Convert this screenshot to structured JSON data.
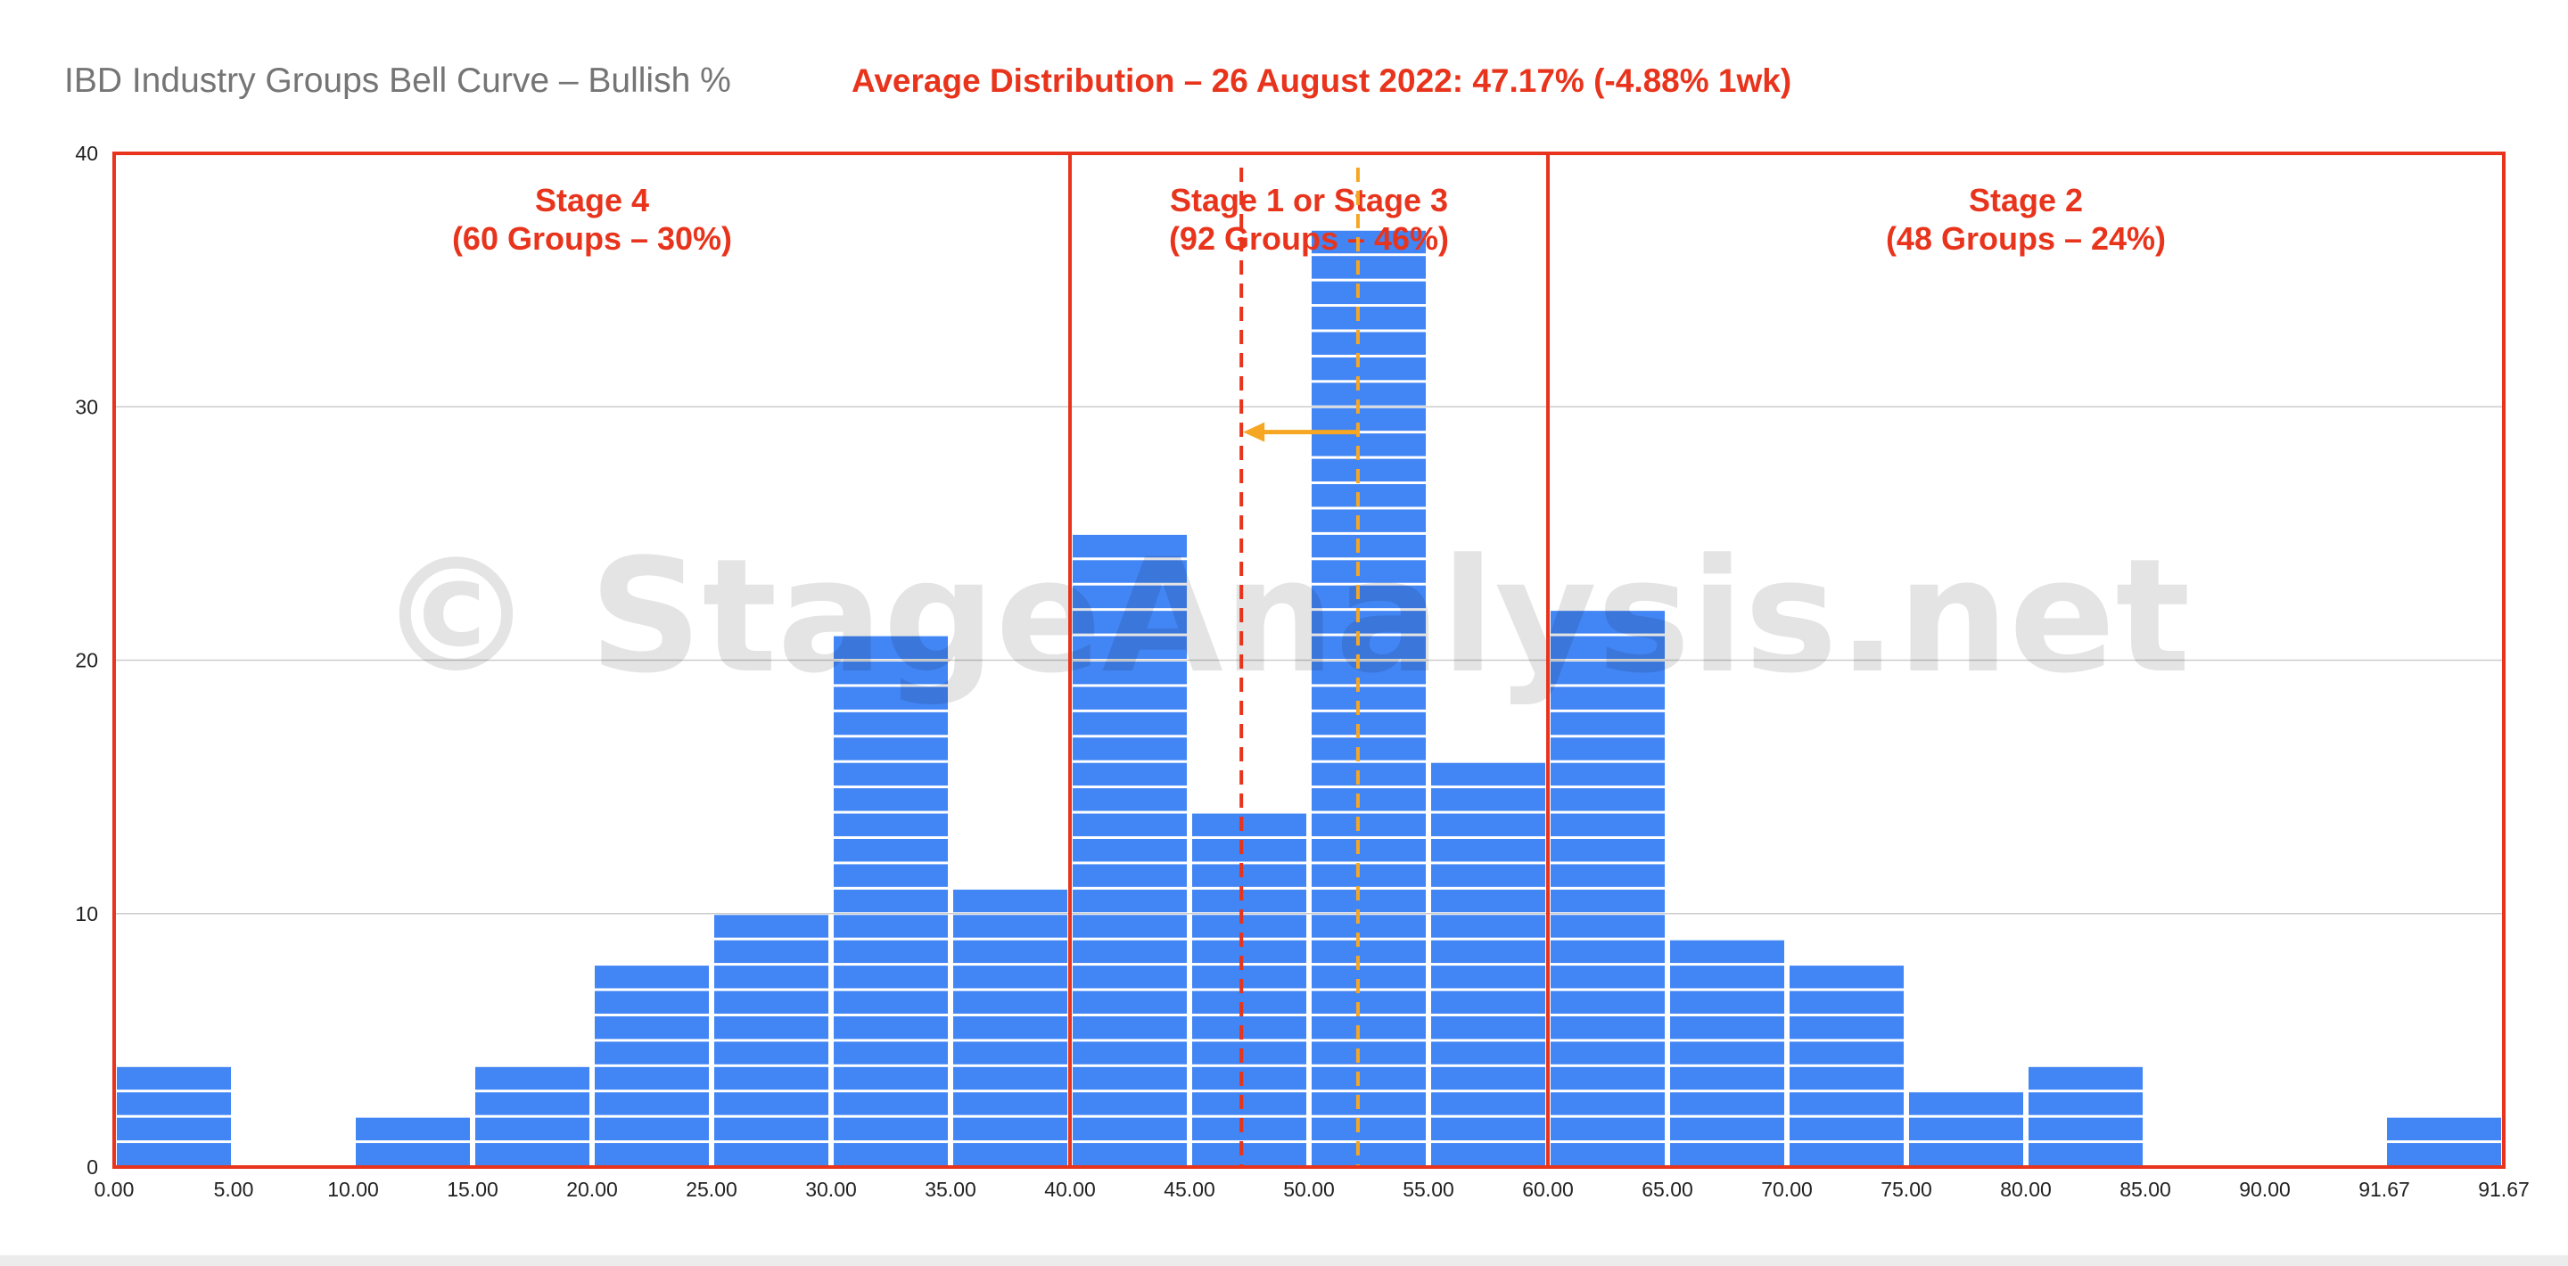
{
  "chart_data": {
    "type": "bar",
    "title": "IBD Industry Groups Bell Curve – Bullish %",
    "subtitle": "Average Distribution – 26 August 2022: 47.17% (-4.88% 1wk)",
    "x_tick_labels": [
      "0.00",
      "5.00",
      "10.00",
      "15.00",
      "20.00",
      "25.00",
      "30.00",
      "35.00",
      "40.00",
      "45.00",
      "50.00",
      "55.00",
      "60.00",
      "65.00",
      "70.00",
      "75.00",
      "80.00",
      "85.00",
      "90.00",
      "91.67",
      "91.67"
    ],
    "categories": [
      "0.00–5.00",
      "5.00–10.00",
      "10.00–15.00",
      "15.00–20.00",
      "20.00–25.00",
      "25.00–30.00",
      "30.00–35.00",
      "35.00–40.00",
      "40.00–45.00",
      "45.00–50.00",
      "50.00–55.00",
      "55.00–60.00",
      "60.00–65.00",
      "65.00–70.00",
      "70.00–75.00",
      "75.00–80.00",
      "80.00–85.00",
      "85.00–90.00",
      "90.00–91.67",
      "91.67–91.67"
    ],
    "values": [
      4,
      0,
      2,
      4,
      8,
      10,
      21,
      11,
      25,
      14,
      37,
      16,
      22,
      9,
      8,
      3,
      4,
      0,
      0,
      2
    ],
    "ylim": [
      0,
      40
    ],
    "y_ticks": [
      0,
      10,
      20,
      30,
      40
    ],
    "grid": true,
    "bar_color": "#4285f4",
    "stages": [
      {
        "name": "Stage 4",
        "detail": "(60 Groups – 30%)",
        "from_bin": 0,
        "to_bin": 8
      },
      {
        "name": "Stage 1 or Stage 3",
        "detail": "(92 Groups – 46%)",
        "from_bin": 8,
        "to_bin": 12
      },
      {
        "name": "Stage 2",
        "detail": "(48 Groups – 24%)",
        "from_bin": 12,
        "to_bin": 20
      }
    ],
    "current_average_pct": 47.17,
    "previous_average_pct": 52.05,
    "average_marker_y": 29,
    "stage_color": "#e8341c",
    "previous_marker_color": "#f5a623"
  },
  "watermark": "© StageAnalysis.net"
}
